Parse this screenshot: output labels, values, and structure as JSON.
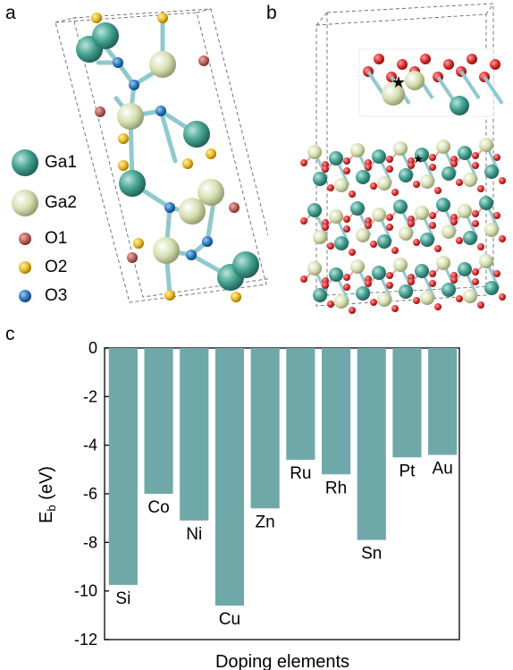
{
  "panels": {
    "a": "a",
    "b": "b",
    "c": "c"
  },
  "legend": [
    {
      "label": "Ga1",
      "color": "#3f9e8d",
      "kind": "atom-large"
    },
    {
      "label": "Ga2",
      "color": "#d6dfb0",
      "kind": "atom-large"
    },
    {
      "label": "O1",
      "color": "#b55a55",
      "kind": "atom-small"
    },
    {
      "label": "O2",
      "color": "#e4b318",
      "kind": "atom-small"
    },
    {
      "label": "O3",
      "color": "#2474b8",
      "kind": "atom-small"
    }
  ],
  "colors": {
    "bar": "#6fa8a9",
    "ga1": "#3f9e8d",
    "ga2": "#d6dfb0",
    "o1": "#b55a55",
    "o2": "#e4b318",
    "o3": "#2474b8",
    "oxygen_red": "#d92727",
    "bond": "#8fc9cf"
  },
  "chart_data": {
    "type": "bar",
    "categories": [
      "Si",
      "Co",
      "Ni",
      "Cu",
      "Zn",
      "Ru",
      "Rh",
      "Sn",
      "Pt",
      "Au"
    ],
    "values": [
      -9.75,
      -6.0,
      -7.1,
      -10.6,
      -6.6,
      -4.6,
      -5.2,
      -7.9,
      -4.5,
      -4.4
    ],
    "xlabel": "Doping elements",
    "ylabel_main": "E",
    "ylabel_sub": "b",
    "ylabel_unit": " (eV)",
    "ylim": [
      -12,
      0
    ],
    "yticks": [
      "0",
      "-2",
      "-4",
      "-6",
      "-8",
      "-10",
      "-12"
    ]
  }
}
